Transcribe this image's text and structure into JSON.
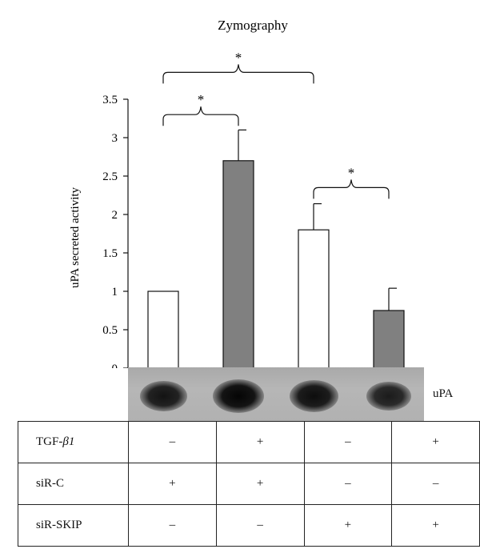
{
  "chart_data": {
    "type": "bar",
    "title": "Zymography",
    "ylabel": "uPA secreted activity",
    "ylim": [
      0,
      3.5
    ],
    "yticks": [
      "0",
      "0.5",
      "1",
      "1.5",
      "2",
      "2.5",
      "3",
      "3.5"
    ],
    "bars": [
      {
        "value": 1.0,
        "error": 0.0,
        "fill": "#ffffff"
      },
      {
        "value": 2.7,
        "error": 0.4,
        "fill": "#808080"
      },
      {
        "value": 1.8,
        "error": 0.34,
        "fill": "#ffffff"
      },
      {
        "value": 0.75,
        "error": 0.29,
        "fill": "#808080"
      }
    ],
    "significance": [
      {
        "from": 0,
        "to": 1,
        "level": 3.3,
        "label": "*"
      },
      {
        "from": 0,
        "to": 2,
        "level": 3.85,
        "label": "*"
      },
      {
        "from": 2,
        "to": 3,
        "level": 2.35,
        "label": "*"
      }
    ]
  },
  "blot": {
    "label": "uPA",
    "band_intensity": [
      0.75,
      1.0,
      0.85,
      0.6
    ]
  },
  "conditions": [
    {
      "label": "TGF-",
      "label_symbol": "β1",
      "values": [
        "–",
        "+",
        "–",
        "+"
      ]
    },
    {
      "label": "siR-C",
      "label_symbol": "",
      "values": [
        "+",
        "+",
        "–",
        "–"
      ]
    },
    {
      "label": "siR-SKIP",
      "label_symbol": "",
      "values": [
        "–",
        "–",
        "+",
        "+"
      ]
    }
  ],
  "colors": {
    "axis": "#111111",
    "gray_bar": "#808080",
    "white_bar": "#ffffff"
  }
}
